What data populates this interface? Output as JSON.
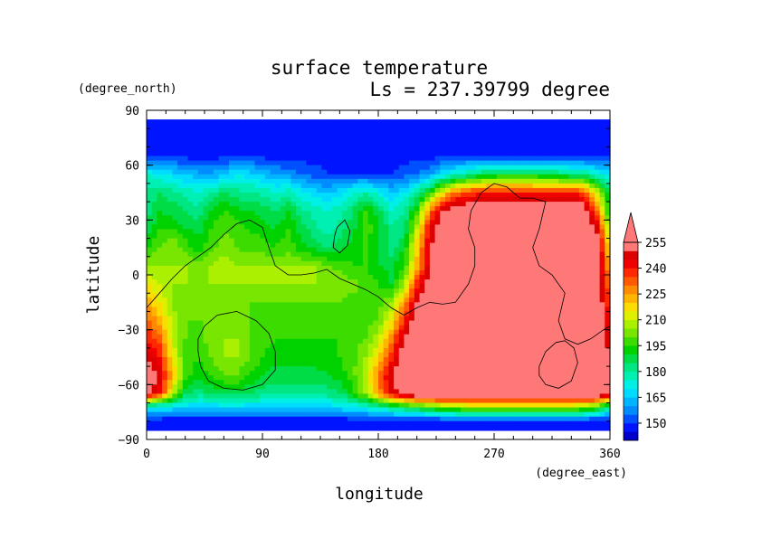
{
  "chart_data": {
    "type": "heatmap",
    "title": "surface temperature",
    "subtitle": "Ls = 237.39799 degree",
    "xlabel": "longitude",
    "ylabel": "latitude",
    "x_units": "(degree_east)",
    "y_units": "(degree_north)",
    "xlim": [
      0,
      360
    ],
    "ylim": [
      -90,
      90
    ],
    "x_ticks": [
      "0",
      "90",
      "180",
      "270",
      "360"
    ],
    "y_ticks": [
      "90",
      "60",
      "30",
      "0",
      "−30",
      "−60",
      "−90"
    ],
    "data_lat_range": [
      -85,
      85
    ],
    "colorbar": {
      "levels": [
        140,
        145,
        150,
        155,
        160,
        165,
        170,
        175,
        180,
        185,
        190,
        195,
        200,
        205,
        210,
        215,
        220,
        225,
        230,
        235,
        240,
        245,
        250,
        255,
        260
      ],
      "tick_labels": [
        "150",
        "165",
        "180",
        "195",
        "210",
        "225",
        "240",
        "255"
      ],
      "extend": "max",
      "colors": [
        "#0000c8",
        "#0014ff",
        "#0050ff",
        "#008cff",
        "#00b4ff",
        "#00dcff",
        "#00f0e6",
        "#00f0b4",
        "#00e682",
        "#00dc46",
        "#00d200",
        "#3cdc00",
        "#78e600",
        "#aaf000",
        "#dcf000",
        "#fadc00",
        "#ffb400",
        "#ff8c00",
        "#ff5a00",
        "#ff2800",
        "#f00000",
        "#dc0000",
        "#ff7878",
        "#ff7878"
      ]
    },
    "lat_rows": [
      85,
      75,
      65,
      55,
      45,
      35,
      25,
      15,
      5,
      -5,
      -15,
      -25,
      -35,
      -45,
      -55,
      -65,
      -72,
      -80,
      -85
    ],
    "lon_cols": [
      0,
      10,
      20,
      30,
      40,
      50,
      60,
      70,
      80,
      90,
      100,
      110,
      120,
      130,
      140,
      150,
      160,
      170,
      180,
      190,
      200,
      210,
      220,
      230,
      240,
      250,
      260,
      270,
      280,
      290,
      300,
      310,
      320,
      330,
      340,
      350,
      360
    ],
    "values": [
      [
        145,
        145,
        145,
        145,
        145,
        145,
        145,
        145,
        145,
        145,
        145,
        145,
        145,
        145,
        145,
        145,
        145,
        145,
        145,
        145,
        145,
        145,
        145,
        145,
        145,
        145,
        145,
        145,
        145,
        145,
        145,
        145,
        145,
        145,
        145,
        145,
        145
      ],
      [
        145,
        145,
        145,
        145,
        145,
        145,
        145,
        145,
        145,
        145,
        145,
        145,
        145,
        145,
        145,
        145,
        145,
        145,
        145,
        145,
        145,
        145,
        145,
        145,
        145,
        145,
        145,
        145,
        145,
        145,
        145,
        145,
        145,
        145,
        145,
        145,
        145
      ],
      [
        148,
        148,
        148,
        148,
        148,
        148,
        148,
        148,
        148,
        148,
        148,
        148,
        148,
        148,
        148,
        148,
        148,
        148,
        148,
        148,
        148,
        148,
        148,
        148,
        148,
        148,
        148,
        148,
        148,
        148,
        148,
        148,
        148,
        148,
        148,
        148,
        148
      ],
      [
        175,
        170,
        168,
        165,
        162,
        160,
        165,
        170,
        168,
        165,
        160,
        158,
        155,
        152,
        150,
        150,
        150,
        150,
        150,
        150,
        152,
        155,
        160,
        168,
        175,
        180,
        185,
        188,
        190,
        190,
        190,
        188,
        185,
        182,
        180,
        175,
        170
      ],
      [
        182,
        185,
        182,
        178,
        175,
        180,
        185,
        182,
        180,
        178,
        175,
        178,
        172,
        168,
        165,
        168,
        175,
        178,
        172,
        165,
        170,
        180,
        195,
        215,
        230,
        235,
        240,
        240,
        240,
        238,
        238,
        238,
        238,
        240,
        235,
        210,
        185
      ],
      [
        182,
        190,
        188,
        185,
        182,
        190,
        195,
        192,
        190,
        188,
        185,
        190,
        182,
        178,
        175,
        178,
        185,
        195,
        188,
        175,
        180,
        195,
        230,
        250,
        258,
        260,
        262,
        262,
        262,
        262,
        262,
        262,
        262,
        260,
        258,
        230,
        190
      ],
      [
        186,
        195,
        195,
        190,
        188,
        195,
        200,
        198,
        195,
        192,
        190,
        195,
        188,
        182,
        178,
        182,
        188,
        198,
        192,
        182,
        182,
        210,
        245,
        260,
        262,
        262,
        262,
        262,
        262,
        262,
        262,
        262,
        262,
        262,
        262,
        248,
        205
      ],
      [
        195,
        200,
        205,
        198,
        192,
        198,
        202,
        200,
        198,
        198,
        195,
        198,
        192,
        188,
        185,
        188,
        192,
        195,
        190,
        182,
        190,
        218,
        248,
        262,
        262,
        262,
        262,
        262,
        262,
        262,
        262,
        262,
        262,
        262,
        262,
        255,
        215
      ],
      [
        205,
        205,
        205,
        205,
        200,
        205,
        208,
        205,
        205,
        205,
        205,
        205,
        205,
        205,
        200,
        198,
        195,
        195,
        190,
        188,
        195,
        222,
        250,
        262,
        262,
        262,
        262,
        262,
        262,
        262,
        262,
        262,
        262,
        262,
        262,
        258,
        220
      ],
      [
        215,
        210,
        205,
        205,
        205,
        205,
        205,
        205,
        205,
        205,
        205,
        205,
        205,
        205,
        205,
        205,
        202,
        198,
        195,
        190,
        205,
        238,
        255,
        262,
        262,
        262,
        262,
        262,
        262,
        262,
        262,
        262,
        262,
        262,
        262,
        260,
        228
      ],
      [
        225,
        215,
        205,
        200,
        200,
        200,
        200,
        200,
        200,
        200,
        200,
        200,
        200,
        200,
        200,
        200,
        198,
        198,
        198,
        205,
        225,
        250,
        262,
        262,
        262,
        262,
        262,
        262,
        262,
        262,
        262,
        262,
        262,
        262,
        262,
        262,
        232
      ],
      [
        232,
        222,
        208,
        200,
        200,
        200,
        202,
        202,
        200,
        198,
        198,
        198,
        198,
        198,
        198,
        198,
        198,
        198,
        200,
        215,
        238,
        258,
        262,
        262,
        262,
        262,
        262,
        262,
        262,
        262,
        262,
        262,
        262,
        262,
        262,
        262,
        240
      ],
      [
        240,
        232,
        210,
        200,
        198,
        202,
        205,
        205,
        200,
        198,
        195,
        195,
        195,
        195,
        195,
        195,
        198,
        200,
        208,
        228,
        250,
        262,
        262,
        262,
        262,
        262,
        262,
        262,
        262,
        262,
        262,
        262,
        262,
        262,
        262,
        262,
        245
      ],
      [
        250,
        240,
        215,
        198,
        195,
        200,
        205,
        205,
        200,
        195,
        192,
        192,
        192,
        192,
        192,
        195,
        198,
        205,
        218,
        238,
        258,
        262,
        262,
        262,
        262,
        262,
        262,
        262,
        262,
        262,
        262,
        262,
        262,
        262,
        262,
        262,
        250
      ],
      [
        258,
        248,
        222,
        198,
        192,
        195,
        200,
        200,
        195,
        190,
        188,
        188,
        188,
        188,
        190,
        192,
        198,
        210,
        228,
        250,
        262,
        262,
        262,
        262,
        262,
        262,
        262,
        262,
        262,
        262,
        262,
        262,
        262,
        262,
        262,
        262,
        258
      ],
      [
        255,
        242,
        210,
        188,
        182,
        185,
        188,
        188,
        185,
        182,
        180,
        180,
        180,
        180,
        182,
        185,
        192,
        205,
        225,
        245,
        255,
        262,
        262,
        262,
        262,
        262,
        262,
        262,
        262,
        262,
        262,
        262,
        262,
        262,
        262,
        262,
        255
      ],
      [
        175,
        172,
        170,
        168,
        168,
        168,
        168,
        168,
        168,
        168,
        168,
        168,
        168,
        168,
        168,
        170,
        172,
        175,
        180,
        185,
        190,
        195,
        200,
        205,
        208,
        210,
        210,
        210,
        210,
        210,
        210,
        210,
        210,
        210,
        208,
        200,
        180
      ],
      [
        146,
        146,
        146,
        146,
        146,
        146,
        146,
        146,
        146,
        146,
        146,
        146,
        146,
        146,
        146,
        146,
        146,
        146,
        146,
        146,
        146,
        146,
        146,
        146,
        146,
        146,
        146,
        146,
        146,
        146,
        146,
        146,
        146,
        146,
        146,
        146,
        146
      ],
      [
        145,
        145,
        145,
        145,
        145,
        145,
        145,
        145,
        145,
        145,
        145,
        145,
        145,
        145,
        145,
        145,
        145,
        145,
        145,
        145,
        145,
        145,
        145,
        145,
        145,
        145,
        145,
        145,
        145,
        145,
        145,
        145,
        145,
        145,
        145,
        145,
        145
      ]
    ],
    "contours": [
      [
        [
          0,
          -18
        ],
        [
          10,
          -10
        ],
        [
          20,
          -2
        ],
        [
          30,
          5
        ],
        [
          40,
          10
        ],
        [
          50,
          15
        ],
        [
          60,
          22
        ],
        [
          70,
          28
        ],
        [
          80,
          30
        ],
        [
          90,
          26
        ],
        [
          95,
          15
        ],
        [
          100,
          5
        ],
        [
          110,
          0
        ],
        [
          120,
          0
        ],
        [
          130,
          1
        ],
        [
          140,
          3
        ],
        [
          150,
          -2
        ],
        [
          160,
          -5
        ],
        [
          170,
          -8
        ],
        [
          180,
          -12
        ],
        [
          190,
          -18
        ],
        [
          200,
          -22
        ],
        [
          210,
          -18
        ],
        [
          220,
          -15
        ],
        [
          230,
          -16
        ],
        [
          240,
          -15
        ],
        [
          250,
          -5
        ],
        [
          255,
          5
        ],
        [
          255,
          15
        ],
        [
          250,
          25
        ],
        [
          252,
          35
        ],
        [
          260,
          45
        ],
        [
          270,
          50
        ],
        [
          280,
          48
        ],
        [
          290,
          42
        ],
        [
          300,
          42
        ],
        [
          310,
          40
        ],
        [
          305,
          25
        ],
        [
          300,
          15
        ],
        [
          305,
          5
        ],
        [
          315,
          0
        ],
        [
          325,
          -10
        ],
        [
          320,
          -25
        ],
        [
          325,
          -35
        ],
        [
          335,
          -38
        ],
        [
          345,
          -35
        ],
        [
          355,
          -30
        ],
        [
          360,
          -28
        ]
      ],
      [
        [
          40,
          -35
        ],
        [
          45,
          -28
        ],
        [
          55,
          -22
        ],
        [
          70,
          -20
        ],
        [
          85,
          -25
        ],
        [
          95,
          -32
        ],
        [
          100,
          -42
        ],
        [
          100,
          -52
        ],
        [
          90,
          -60
        ],
        [
          75,
          -63
        ],
        [
          60,
          -62
        ],
        [
          48,
          -58
        ],
        [
          42,
          -50
        ],
        [
          40,
          -42
        ],
        [
          40,
          -35
        ]
      ],
      [
        [
          148,
          26
        ],
        [
          154,
          30
        ],
        [
          158,
          24
        ],
        [
          156,
          16
        ],
        [
          150,
          12
        ],
        [
          145,
          15
        ],
        [
          146,
          21
        ],
        [
          148,
          26
        ]
      ],
      [
        [
          305,
          -50
        ],
        [
          310,
          -42
        ],
        [
          318,
          -37
        ],
        [
          325,
          -36
        ],
        [
          332,
          -40
        ],
        [
          335,
          -48
        ],
        [
          330,
          -58
        ],
        [
          320,
          -62
        ],
        [
          310,
          -60
        ],
        [
          305,
          -55
        ],
        [
          305,
          -50
        ]
      ]
    ]
  }
}
